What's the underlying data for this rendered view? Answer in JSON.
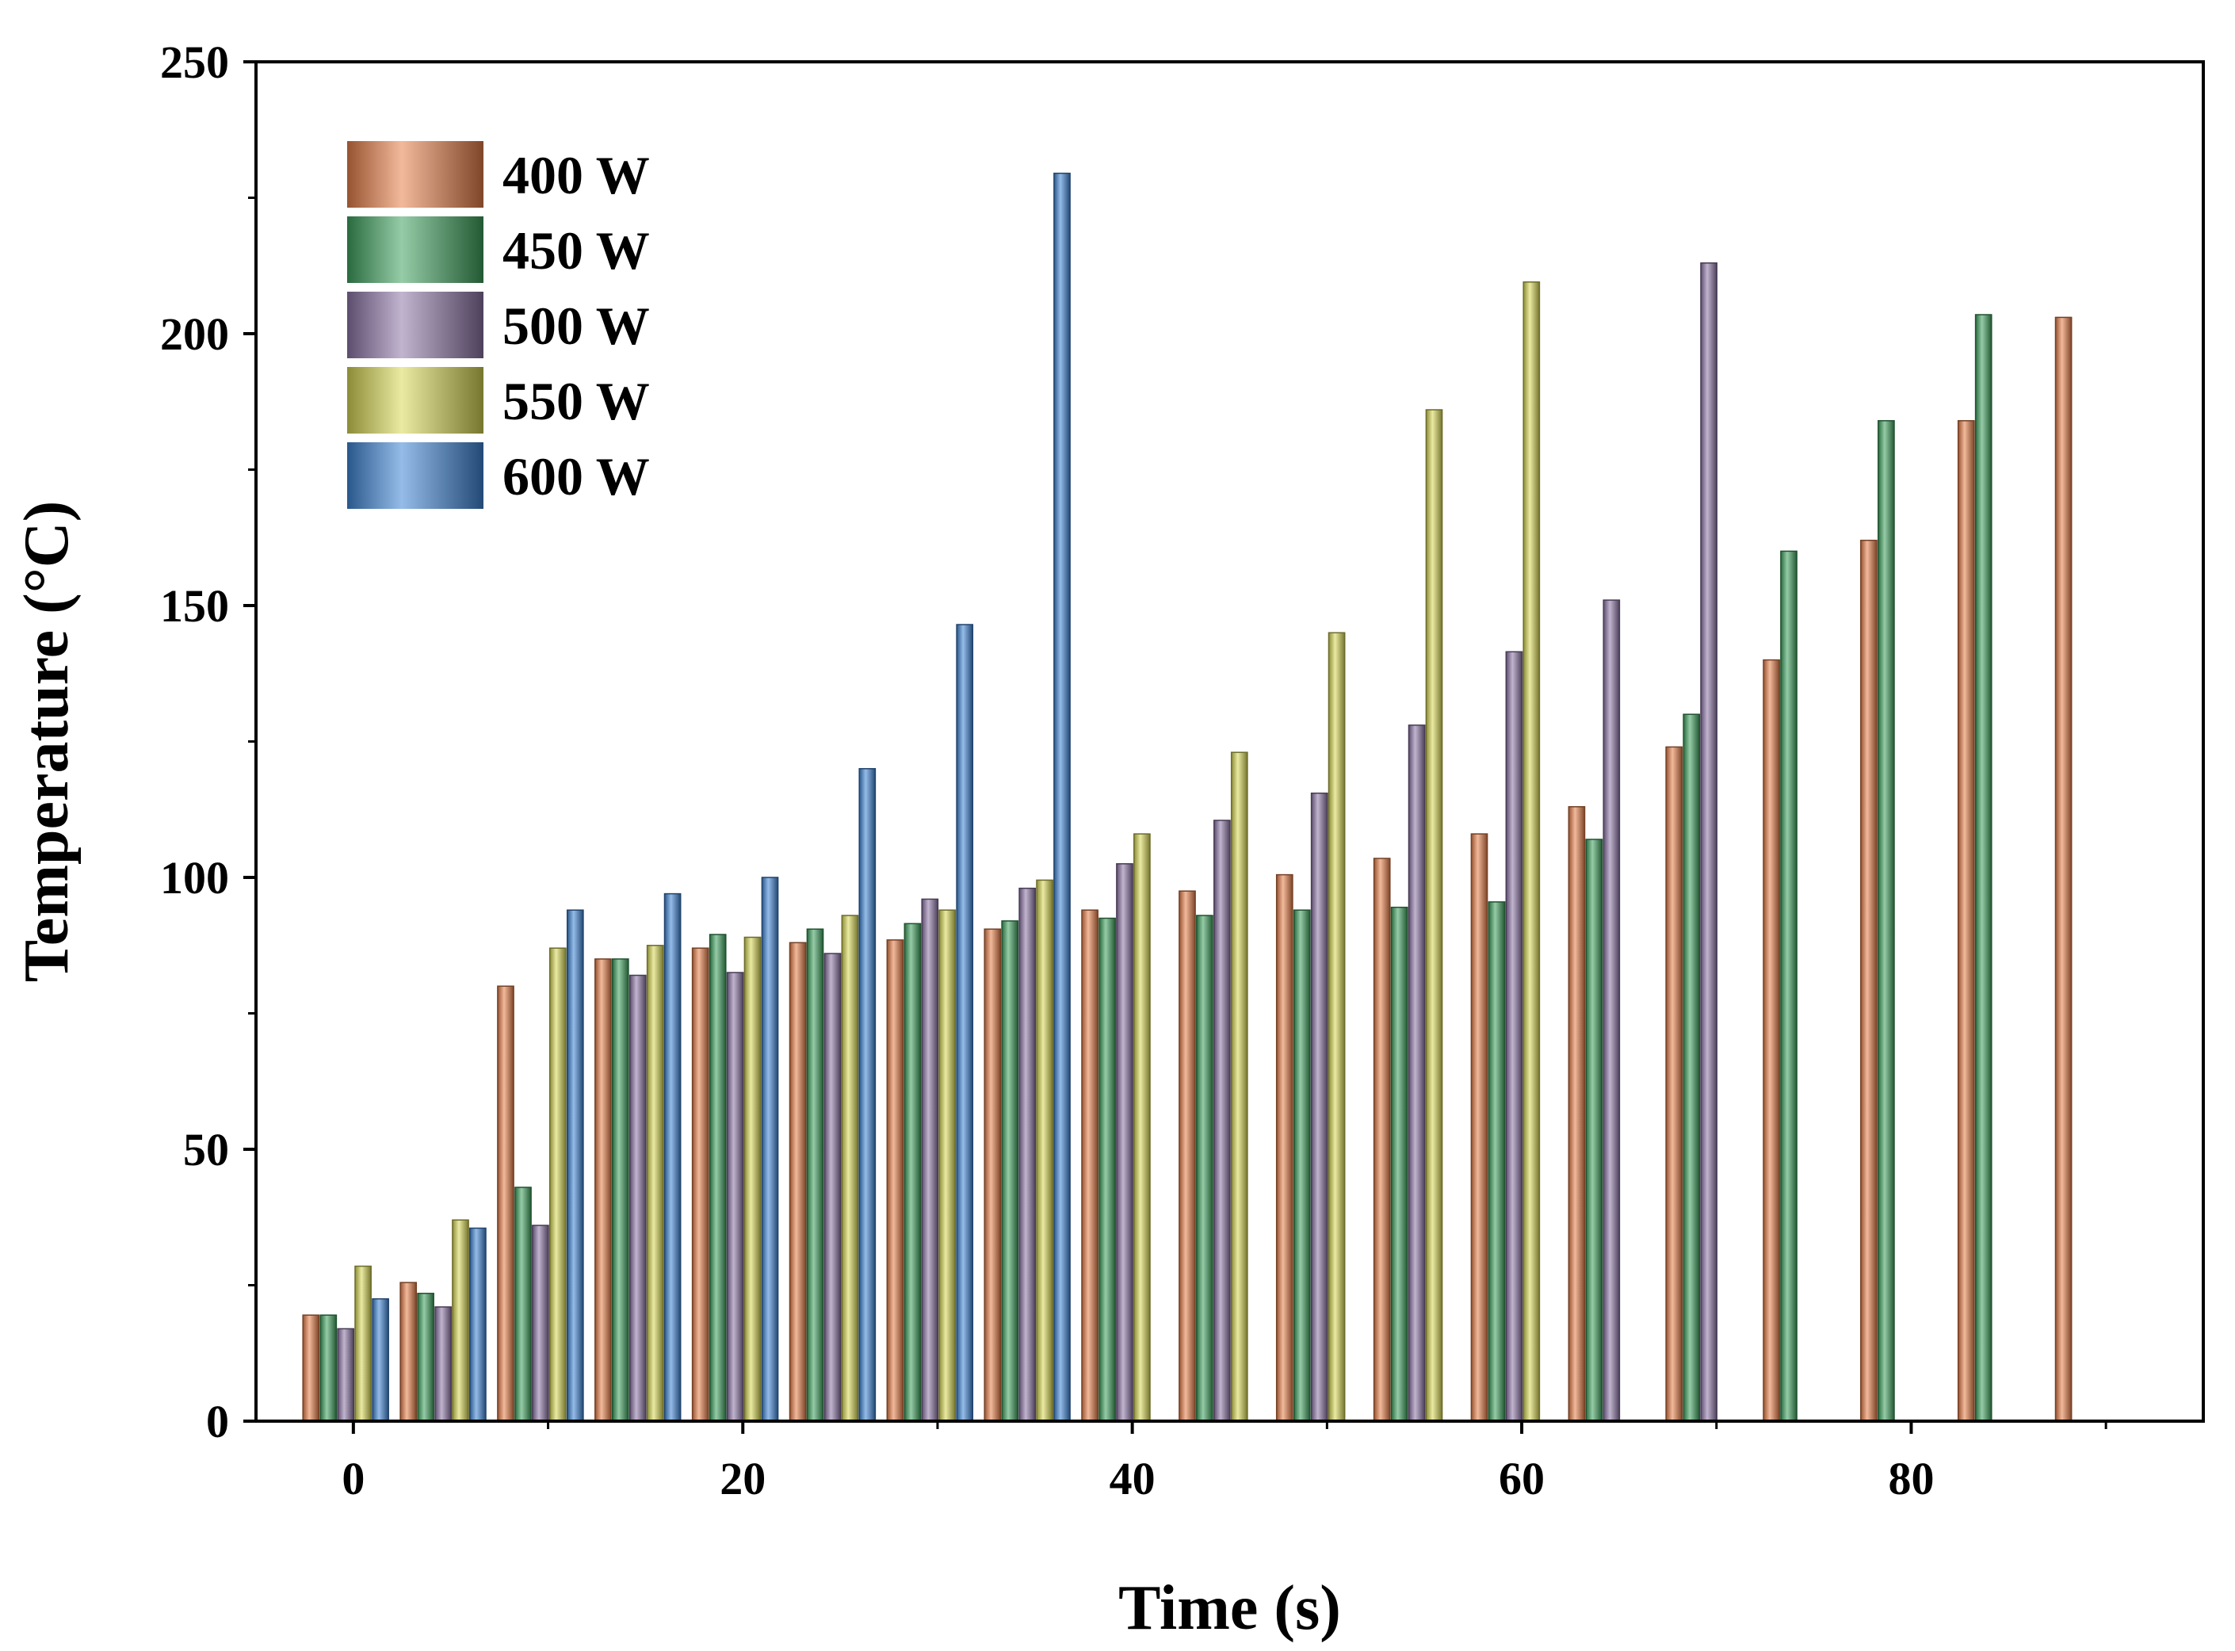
{
  "chart_data": {
    "type": "bar",
    "title": "",
    "xlabel": "Time (s)",
    "ylabel": "Temperature (°C)",
    "xlim": [
      -5,
      95
    ],
    "ylim": [
      0,
      250
    ],
    "x_ticks": [
      "0",
      "20",
      "40",
      "60",
      "80"
    ],
    "x_tick_values": [
      0,
      20,
      40,
      60,
      80
    ],
    "y_ticks": [
      "0",
      "50",
      "100",
      "150",
      "200",
      "250"
    ],
    "y_tick_values": [
      0,
      50,
      100,
      150,
      200,
      250
    ],
    "legend_position": "top-left",
    "grid": false,
    "x": [
      0,
      5,
      10,
      15,
      20,
      25,
      30,
      35,
      40,
      45,
      50,
      55,
      60,
      65,
      70,
      75,
      80,
      85,
      90
    ],
    "series": [
      {
        "name": "400 W",
        "color": "#e8804a",
        "values": [
          19.5,
          25.5,
          80,
          85,
          87,
          88,
          88.5,
          90.5,
          94,
          97.5,
          100.5,
          103.5,
          108,
          113,
          124,
          140,
          162,
          184,
          203
        ]
      },
      {
        "name": "450 W",
        "color": "#3fa35f",
        "values": [
          19.5,
          23.5,
          43,
          85,
          89.5,
          90.5,
          91.5,
          92,
          92.5,
          93,
          94,
          94.5,
          95.5,
          107,
          130,
          160,
          184,
          203.5,
          null
        ]
      },
      {
        "name": "500 W",
        "color": "#8e76a8",
        "values": [
          17,
          21,
          36,
          82,
          82.5,
          86,
          96,
          98,
          102.5,
          110.5,
          115.5,
          128,
          141.5,
          151,
          213,
          null,
          null,
          null,
          null
        ]
      },
      {
        "name": "550 W",
        "color": "#d8d855",
        "values": [
          28.5,
          37,
          87,
          87.5,
          89,
          93,
          94,
          99.5,
          108,
          123,
          145,
          186,
          209.5,
          null,
          null,
          null,
          null,
          null,
          null
        ]
      },
      {
        "name": "600 W",
        "color": "#3f86d6",
        "values": [
          22.5,
          35.5,
          94,
          97,
          100,
          120,
          146.5,
          229.5,
          null,
          null,
          null,
          null,
          null,
          null,
          null,
          null,
          null,
          null,
          null
        ]
      }
    ]
  }
}
